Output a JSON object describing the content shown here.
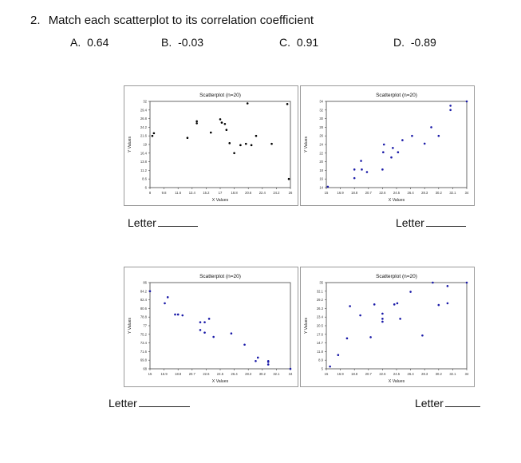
{
  "question": {
    "number": "2.",
    "text": "Match each scatterplot to its correlation coefficient"
  },
  "choices": [
    {
      "label": "A.",
      "value": "0.64"
    },
    {
      "label": "B.",
      "value": "-0.03"
    },
    {
      "label": "C.",
      "value": "0.91"
    },
    {
      "label": "D.",
      "value": "-0.89"
    }
  ],
  "letter_label": "Letter",
  "chart_data": [
    {
      "type": "scatter",
      "title": "Scatterplot (n=20)",
      "xlabel": "X Values",
      "ylabel": "Y Values",
      "xlim": [
        8,
        26
      ],
      "ylim": [
        6,
        32
      ],
      "xticks": [
        "8",
        "9.8",
        "11.6",
        "13.4",
        "15.2",
        "17",
        "18.8",
        "20.6",
        "22.4",
        "24.2",
        "26"
      ],
      "yticks": [
        "6",
        "8.6",
        "11.2",
        "13.8",
        "16.4",
        "19",
        "21.6",
        "24.2",
        "26.8",
        "29.4",
        "32"
      ],
      "point_color": "#000000",
      "x": [
        8.3,
        8.5,
        12.8,
        14.0,
        14.0,
        15.8,
        17.0,
        17.2,
        17.6,
        17.8,
        18.2,
        18.8,
        19.6,
        20.3,
        20.5,
        21.0,
        21.6,
        23.6,
        25.6,
        25.8
      ],
      "y": [
        21.6,
        22.4,
        21.0,
        25.4,
        26.0,
        22.6,
        26.6,
        25.6,
        25.2,
        23.4,
        19.4,
        16.4,
        18.8,
        19.2,
        31.4,
        18.8,
        21.6,
        19.2,
        31.2,
        8.6
      ]
    },
    {
      "type": "scatter",
      "title": "Scatterplot (n=20)",
      "xlabel": "X Values",
      "ylabel": "Y Values",
      "xlim": [
        15,
        34
      ],
      "ylim": [
        14,
        34
      ],
      "xticks": [
        "15",
        "16.9",
        "18.8",
        "20.7",
        "22.6",
        "24.5",
        "26.4",
        "28.3",
        "30.2",
        "32.1",
        "34"
      ],
      "yticks": [
        "14",
        "16",
        "18",
        "20",
        "22",
        "24",
        "26",
        "28",
        "30",
        "32",
        "34"
      ],
      "point_color": "#1a1aa8",
      "x": [
        15.2,
        18.8,
        18.8,
        19.7,
        19.8,
        20.5,
        22.6,
        22.7,
        22.8,
        23.8,
        24.0,
        24.7,
        25.3,
        26.6,
        28.3,
        29.2,
        30.2,
        31.8,
        31.8,
        34.0
      ],
      "y": [
        14.2,
        16.2,
        18.2,
        20.2,
        18.2,
        17.6,
        18.2,
        22.2,
        24.0,
        21.0,
        23.2,
        22.2,
        25.0,
        26.0,
        24.2,
        28.0,
        26.0,
        32.0,
        33.0,
        34.0
      ]
    },
    {
      "type": "scatter",
      "title": "Scatterplot (n=20)",
      "xlabel": "X Values",
      "ylabel": "Y Values",
      "xlim": [
        15,
        34
      ],
      "ylim": [
        68,
        88
      ],
      "xticks": [
        "15",
        "16.9",
        "18.8",
        "20.7",
        "22.6",
        "24.5",
        "26.4",
        "28.3",
        "30.2",
        "32.1",
        "34"
      ],
      "yticks": [
        "68",
        "69.8",
        "71.6",
        "73.4",
        "75.2",
        "77",
        "78.8",
        "80.6",
        "82.4",
        "84.2",
        "86"
      ],
      "point_color": "#1a1aa8",
      "x": [
        15.0,
        17.0,
        17.4,
        18.4,
        18.8,
        19.4,
        21.8,
        21.8,
        22.4,
        22.4,
        23.0,
        23.6,
        26.0,
        27.8,
        29.3,
        29.6,
        31.0,
        31.0,
        31.0,
        34.0
      ],
      "y": [
        86.0,
        83.2,
        84.6,
        80.6,
        80.6,
        80.4,
        78.8,
        77.0,
        76.4,
        78.8,
        79.6,
        75.4,
        76.2,
        73.6,
        69.8,
        70.6,
        69.6,
        69.0,
        69.8,
        68.0
      ],
      "ylim_top": 88
    },
    {
      "type": "scatter",
      "title": "Scatterplot (n=20)",
      "xlabel": "X Values",
      "ylabel": "Y Values",
      "xlim": [
        15,
        34
      ],
      "ylim": [
        5,
        35
      ],
      "xticks": [
        "15",
        "16.9",
        "18.8",
        "20.7",
        "22.6",
        "24.5",
        "26.4",
        "28.3",
        "30.2",
        "32.1",
        "34"
      ],
      "yticks": [
        "5",
        "8.9",
        "11.8",
        "14.7",
        "17.6",
        "20.5",
        "23.4",
        "26.3",
        "29.2",
        "32.1",
        "35"
      ],
      "point_color": "#1a1aa8",
      "x": [
        15.5,
        16.6,
        17.8,
        18.2,
        19.6,
        21.0,
        21.5,
        22.6,
        22.6,
        22.6,
        24.2,
        24.6,
        25.0,
        26.4,
        28.0,
        29.4,
        30.2,
        31.4,
        31.4,
        34.0
      ],
      "y": [
        5.8,
        9.8,
        15.6,
        26.8,
        23.6,
        16.0,
        27.4,
        21.4,
        22.4,
        24.2,
        27.4,
        27.8,
        22.4,
        31.8,
        16.6,
        35.0,
        27.2,
        33.8,
        27.8,
        35.0
      ]
    }
  ]
}
